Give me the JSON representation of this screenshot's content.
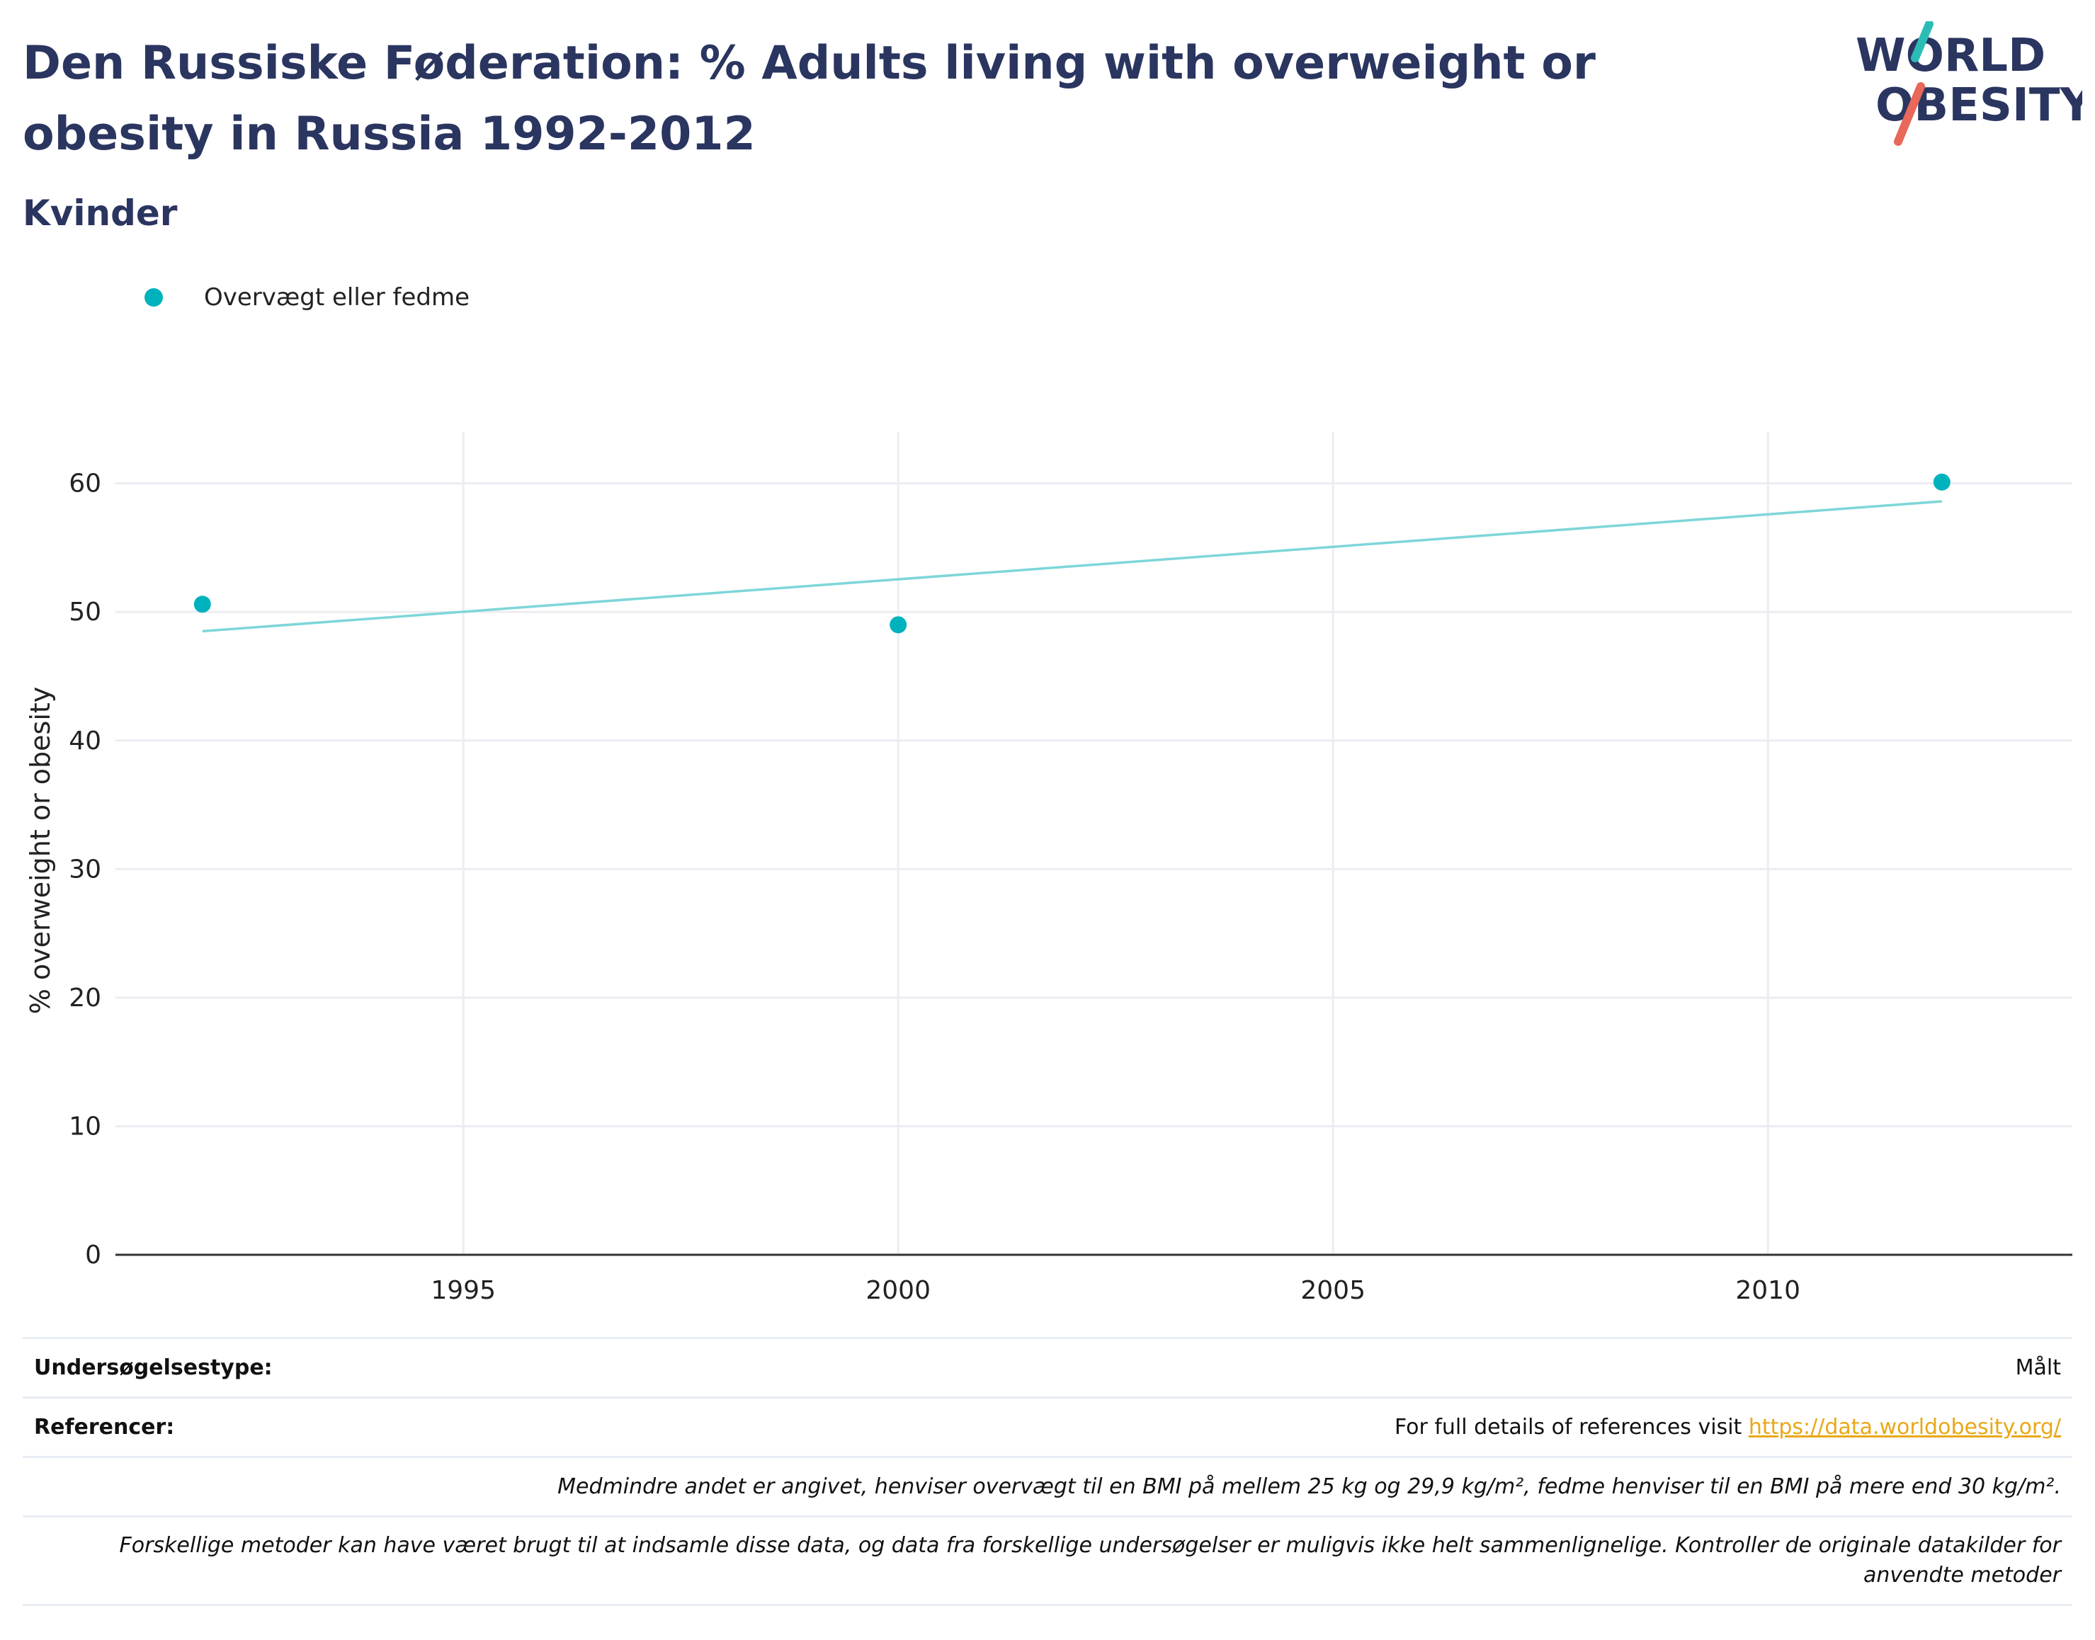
{
  "header": {
    "title": "Den Russiske Føderation: % Adults living with overweight or obesity in Russia 1992-2012",
    "subtitle": "Kvinder"
  },
  "logo": {
    "line1": "WORLD",
    "line2": "OBESITY",
    "accent_teal": "#2bbdb5",
    "accent_coral": "#e8685a"
  },
  "colors": {
    "series": "#00b2bd",
    "trend": "#7dd6d8",
    "grid": "#ebedf2",
    "axis": "#333333",
    "link": "#e8a817"
  },
  "chart_data": {
    "type": "scatter",
    "ylabel": "% overweight or obesity",
    "xlabel": "",
    "xlim": [
      1991,
      2013.5
    ],
    "ylim": [
      0,
      64
    ],
    "x_ticks": [
      1995,
      2000,
      2005,
      2010
    ],
    "y_ticks": [
      0,
      10,
      20,
      30,
      40,
      50,
      60
    ],
    "grid": true,
    "legend_position": "top-left",
    "series": [
      {
        "name": "Overvægt eller fedme",
        "points": [
          {
            "x": 1992,
            "y": 50.6
          },
          {
            "x": 2000,
            "y": 49.0
          },
          {
            "x": 2012,
            "y": 60.1
          }
        ]
      }
    ],
    "trendline": {
      "start": {
        "x": 1992,
        "y": 48.5
      },
      "end": {
        "x": 2012,
        "y": 58.6
      }
    }
  },
  "footer": {
    "survey_label": "Undersøgelsestype:",
    "survey_value": "Målt",
    "references_label": "Referencer:",
    "references_text": "For full details of references visit ",
    "references_link": "https://data.worldobesity.org/",
    "note_bmi": "Medmindre andet er angivet, henviser overvægt til en BMI på mellem 25 kg og 29,9 kg/m², fedme henviser til en BMI på mere end 30 kg/m².",
    "note_methods": "Forskellige metoder kan have været brugt til at indsamle disse data, og data fra forskellige undersøgelser er muligvis ikke helt sammenlignelige. Kontroller de originale datakilder for anvendte metoder"
  }
}
